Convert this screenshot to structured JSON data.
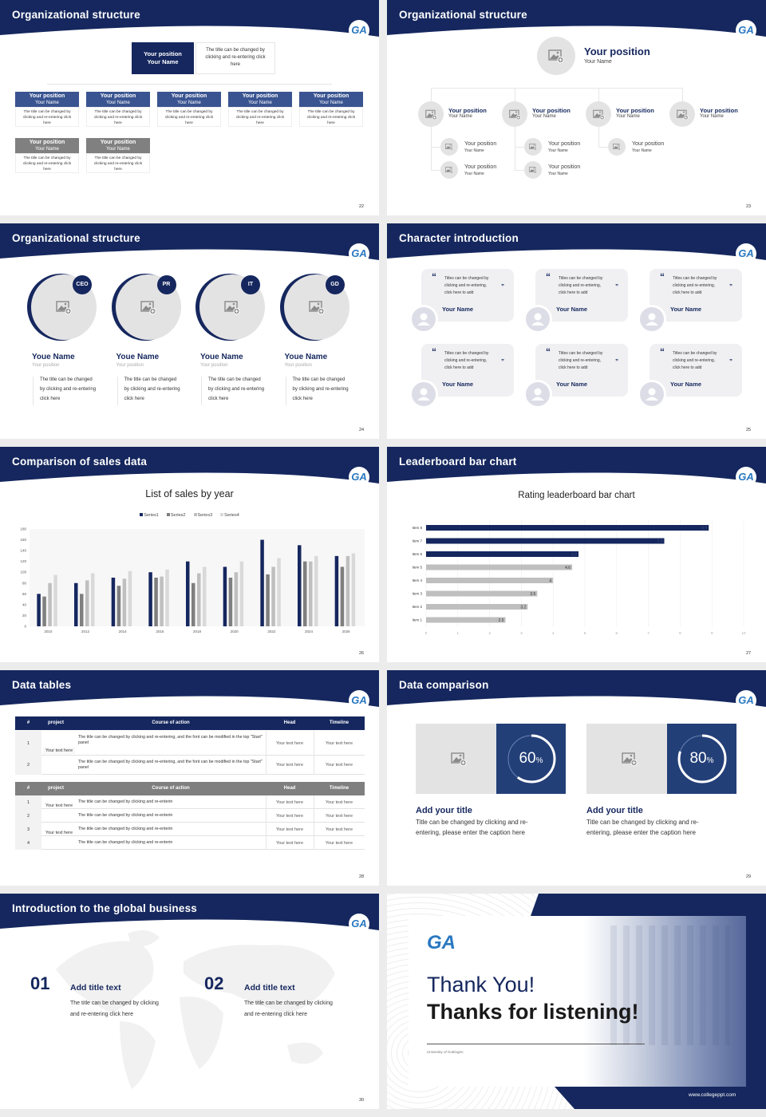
{
  "colors": {
    "navy": "#15275e",
    "navy_light": "#3a5491",
    "grey_header": "#808080",
    "placeholder": "#e4e3e4",
    "accent_blue": "#2a78c0"
  },
  "logo_text": "GA",
  "slides": [
    {
      "title": "Organizational structure",
      "page": "22",
      "top": {
        "position": "Your position",
        "name": "Your Name",
        "desc": "The title can be changed by clicking and re-entering click here"
      },
      "rows": [
        [
          {
            "position": "Your position",
            "name": "Your Name",
            "desc": "The title can be changed by clicking and re-entering click here"
          },
          {
            "position": "Your position",
            "name": "Your Name",
            "desc": "The title can be changed by clicking and re-entering click here"
          },
          {
            "position": "Your position",
            "name": "Your Name",
            "desc": "The title can be changed by clicking and re-entering click here"
          },
          {
            "position": "Your position",
            "name": "Your Name",
            "desc": "The title can be changed by clicking and re-entering click here"
          },
          {
            "position": "Your position",
            "name": "Your Name",
            "desc": "The title can be changed by clicking and re-entering click here"
          }
        ],
        [
          {
            "position": "Your position",
            "name": "Your Name",
            "desc": "The title can be changed by clicking and re-entering click here"
          },
          {
            "position": "Your position",
            "name": "Your Name",
            "desc": "The title can be changed by clicking and re-entering click here"
          }
        ]
      ]
    },
    {
      "title": "Organizational structure",
      "page": "23",
      "top": {
        "position": "Your position",
        "name": "Your Name"
      },
      "mid": [
        {
          "position": "Your position",
          "name": "Your Name"
        },
        {
          "position": "Your position",
          "name": "Your Name"
        },
        {
          "position": "Your position",
          "name": "Your Name"
        },
        {
          "position": "Your position",
          "name": "Your Name"
        }
      ],
      "subs": [
        [
          {
            "position": "Your position",
            "name": "Your Name"
          },
          {
            "position": "Your position",
            "name": "Your Name"
          }
        ],
        [
          {
            "position": "Your position",
            "name": "Your Name"
          },
          {
            "position": "Your position",
            "name": "Your Name"
          }
        ],
        [
          {
            "position": "Your position",
            "name": "Your Name"
          }
        ]
      ]
    },
    {
      "title": "Organizational structure",
      "page": "24",
      "members": [
        {
          "badge": "CEO",
          "name": "Youe Name",
          "position": "Your position",
          "desc": [
            "The title can be changed",
            "by clicking and re-entering",
            "click here"
          ]
        },
        {
          "badge": "PR",
          "name": "Youe Name",
          "position": "Your position",
          "desc": [
            "The title can be changed",
            "by clicking and re-entering",
            "click here"
          ]
        },
        {
          "badge": "IT",
          "name": "Youe Name",
          "position": "Your position",
          "desc": [
            "The title can be changed",
            "by clicking and re-entering",
            "click here"
          ]
        },
        {
          "badge": "GD",
          "name": "Youe Name",
          "position": "Your position",
          "desc": [
            "The title can be changed",
            "by clicking and re-entering",
            "click here"
          ]
        }
      ]
    },
    {
      "title": "Character introduction",
      "page": "25",
      "cards": [
        {
          "quote": [
            "Titles can be changed by",
            "clicking and re-entering,",
            "click here to add"
          ],
          "name": "Your Name"
        },
        {
          "quote": [
            "Titles can be changed by",
            "clicking and re-entering,",
            "click here to add"
          ],
          "name": "Your Name"
        },
        {
          "quote": [
            "Titles can be changed by",
            "clicking and re-entering,",
            "click here to add"
          ],
          "name": "Your Name"
        },
        {
          "quote": [
            "Titles can be changed by",
            "clicking and re-entering,",
            "click here to add"
          ],
          "name": "Your Name"
        },
        {
          "quote": [
            "Titles can be changed by",
            "clicking and re-entering,",
            "click here to add"
          ],
          "name": "Your Name"
        },
        {
          "quote": [
            "Titles can be changed by",
            "clicking and re-entering,",
            "click here to add"
          ],
          "name": "Your Name"
        }
      ]
    },
    {
      "title": "Comparison of sales data",
      "page": "26"
    },
    {
      "title": "Leaderboard bar chart",
      "page": "27"
    },
    {
      "title": "Data tables",
      "page": "28",
      "table1": {
        "headers": [
          "#",
          "project",
          "Course of action",
          "Head",
          "Timeline"
        ],
        "project": "Your text here",
        "rows": [
          {
            "num": "1",
            "course": "The title can be changed by clicking and re-entering, and the font can be modified in the top \"Start\" panel",
            "head": "Your text here",
            "timeline": "Your text here"
          },
          {
            "num": "2",
            "course": "The title can be changed by clicking and re-entering, and the font can be modified in the top \"Start\" panel",
            "head": "Your text here",
            "timeline": "Your text here"
          }
        ]
      },
      "table2": {
        "headers": [
          "#",
          "project",
          "Course of action",
          "Head",
          "Timeline"
        ],
        "projects": [
          "Your text here",
          "Your text here"
        ],
        "rows": [
          {
            "num": "1",
            "course": "The title can be changed by clicking and re-enterin",
            "head": "Your text here",
            "timeline": "Your text here"
          },
          {
            "num": "2",
            "course": "The title can be changed by clicking and re-enterin",
            "head": "Your text here",
            "timeline": "Your text here"
          },
          {
            "num": "3",
            "course": "The title can be changed by clicking and re-enterin",
            "head": "Your text here",
            "timeline": "Your text here"
          },
          {
            "num": "4",
            "course": "The title can be changed by clicking and re-enterin",
            "head": "Your text here",
            "timeline": "Your text here"
          }
        ]
      }
    },
    {
      "title": "Data comparison",
      "page": "29",
      "items": [
        {
          "percent": 60,
          "unit": "%",
          "title": "Add your title",
          "caption": [
            "Title can be changed by clicking and re-",
            "entering, please enter the caption here"
          ]
        },
        {
          "percent": 80,
          "unit": "%",
          "title": "Add your title",
          "caption": [
            "Title can be changed by clicking and re-",
            "entering, please enter the caption here"
          ]
        }
      ]
    },
    {
      "title": "Introduction to the global business",
      "page": "30",
      "items": [
        {
          "num": "01",
          "title": "Add title text",
          "desc": [
            "The title can be changed by clicking",
            "and re-entering click here"
          ]
        },
        {
          "num": "02",
          "title": "Add title text",
          "desc": [
            "The title can be changed by clicking",
            "and re-entering click here"
          ]
        }
      ]
    },
    {
      "thanks": "Thank You!",
      "subtitle": "Thanks for listening!",
      "university": "University of Gottingen",
      "website": "www.collegeppt.com"
    }
  ],
  "chart_data": [
    {
      "type": "bar",
      "title": "List of sales by year",
      "categories": [
        "2010",
        "2012",
        "2014",
        "2016",
        "2018",
        "2020",
        "2022",
        "2024",
        "2026"
      ],
      "series": [
        {
          "name": "Series1",
          "color": "#15275e",
          "values": [
            60,
            80,
            90,
            100,
            120,
            110,
            160,
            150,
            130
          ]
        },
        {
          "name": "Series2",
          "color": "#7f7f7f",
          "values": [
            55,
            60,
            75,
            90,
            80,
            90,
            96,
            120,
            110
          ]
        },
        {
          "name": "Series3",
          "color": "#bfbfbf",
          "values": [
            80,
            85,
            88,
            92,
            98,
            100,
            110,
            120,
            130
          ]
        },
        {
          "name": "Series4",
          "color": "#d9d9d9",
          "values": [
            95,
            98,
            102,
            105,
            110,
            120,
            126,
            130,
            135
          ]
        }
      ],
      "ylim": [
        0,
        180
      ],
      "yticks": [
        "0",
        "20",
        "40",
        "60",
        "80",
        "100",
        "120",
        "140",
        "160",
        "180"
      ],
      "legend": "top",
      "grid": false
    },
    {
      "type": "bar",
      "orientation": "horizontal",
      "title": "Rating leaderboard bar chart",
      "categories": [
        "Item 1",
        "Item 2",
        "Item 3",
        "Item 4",
        "Item 5",
        "Item 6",
        "Item 7",
        "Item 8"
      ],
      "values": [
        2.5,
        3.2,
        3.5,
        4,
        4.6,
        4.8,
        7.5,
        8.9
      ],
      "labels": [
        "2.5",
        "3.2",
        "3.5",
        "4",
        "4.6",
        "4.8",
        "7.5",
        "8.9"
      ],
      "highlight_colors": {
        "top3": "#15275e",
        "others": "#bfbfbf"
      },
      "xlim": [
        0,
        10
      ],
      "xticks": [
        "0",
        "1",
        "2",
        "3",
        "4",
        "5",
        "6",
        "7",
        "8",
        "9",
        "10"
      ],
      "grid": true
    }
  ]
}
